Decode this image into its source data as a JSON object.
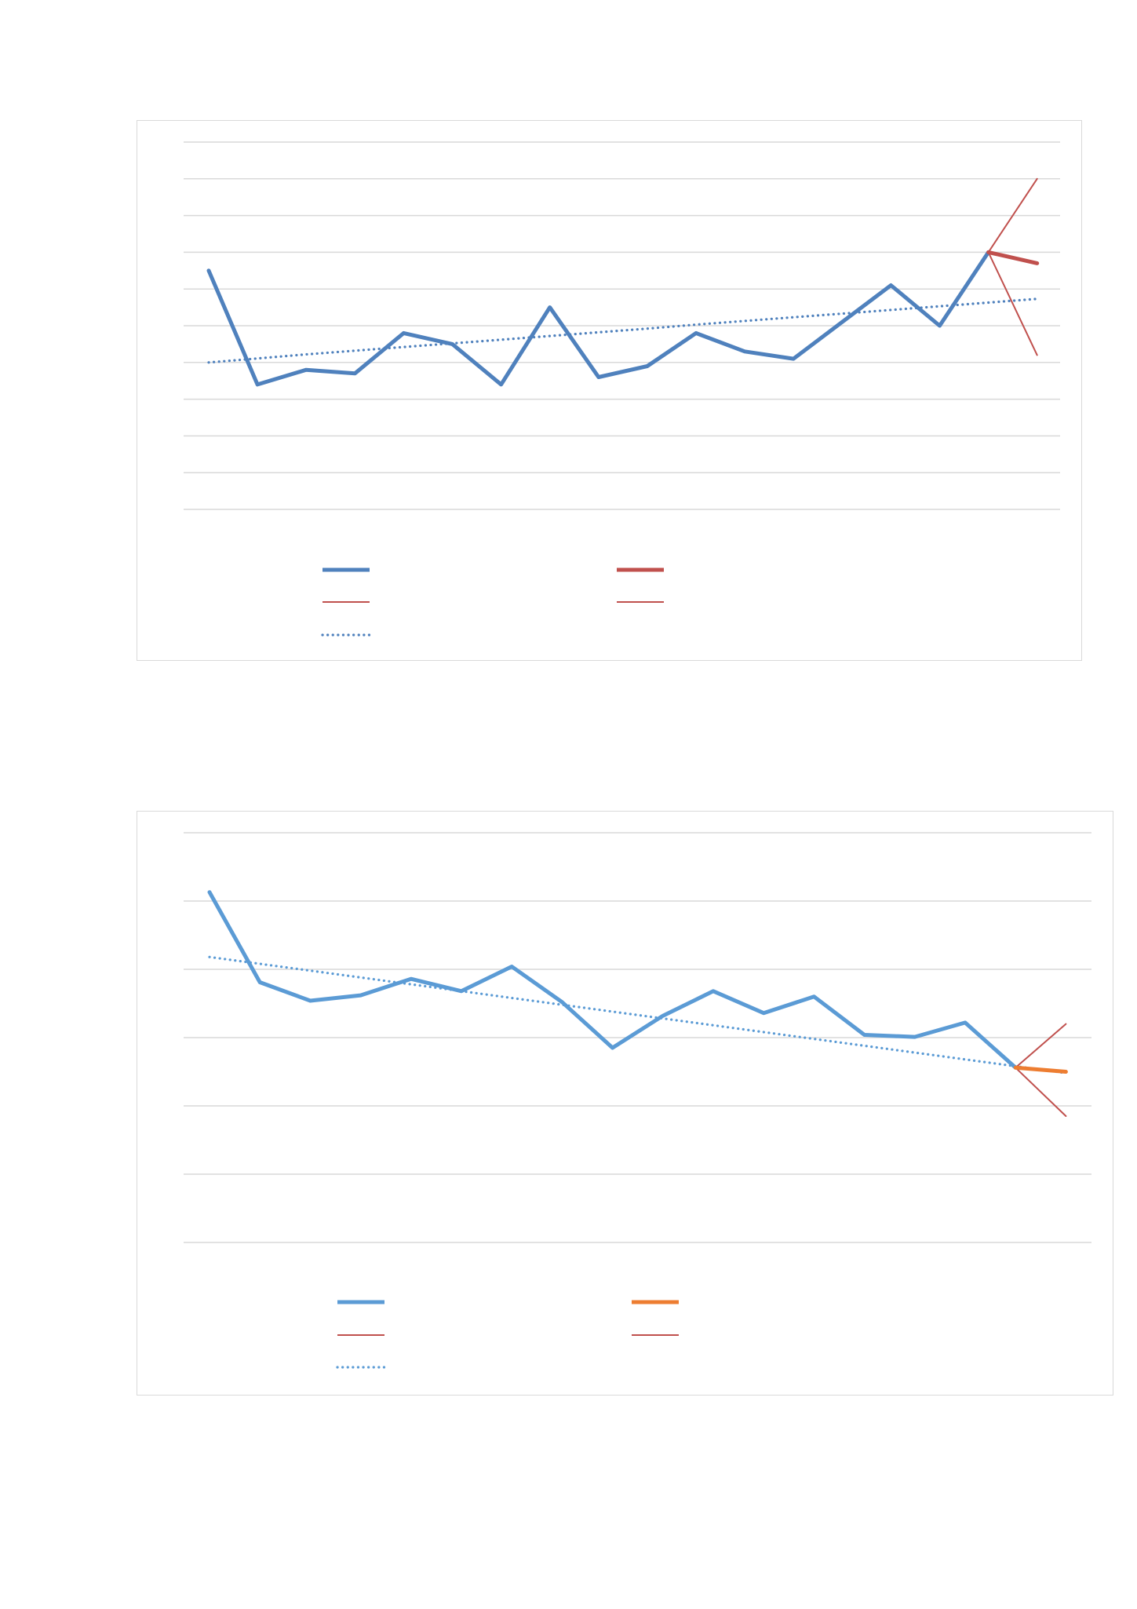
{
  "chart_data": [
    {
      "type": "line",
      "title": "",
      "xlabel": "",
      "ylabel": "",
      "ylim": [
        0,
        10
      ],
      "grid": true,
      "legend": "bottom",
      "x": [
        1,
        2,
        3,
        4,
        5,
        6,
        7,
        8,
        9,
        10,
        11,
        12,
        13,
        14,
        15,
        16,
        17,
        18
      ],
      "series": [
        {
          "role": "actual",
          "values": [
            6.5,
            3.4,
            3.8,
            3.7,
            4.8,
            4.5,
            3.4,
            5.5,
            3.6,
            3.9,
            4.8,
            4.3,
            4.1,
            5.1,
            6.1,
            5.0,
            7.0,
            null
          ],
          "color": "#4f81bd"
        },
        {
          "role": "forecast",
          "values": [
            null,
            null,
            null,
            null,
            null,
            null,
            null,
            null,
            null,
            null,
            null,
            null,
            null,
            null,
            null,
            null,
            7.0,
            6.7
          ],
          "color": "#c0504d"
        },
        {
          "role": "upper-bound",
          "values": [
            null,
            null,
            null,
            null,
            null,
            null,
            null,
            null,
            null,
            null,
            null,
            null,
            null,
            null,
            null,
            null,
            7.0,
            9.0
          ],
          "color": "#c0504d"
        },
        {
          "role": "lower-bound",
          "values": [
            null,
            null,
            null,
            null,
            null,
            null,
            null,
            null,
            null,
            null,
            null,
            null,
            null,
            null,
            null,
            null,
            7.0,
            4.2
          ],
          "color": "#c0504d"
        },
        {
          "role": "trend",
          "values": [
            4.0,
            4.11,
            4.22,
            4.32,
            4.42,
            4.52,
            4.62,
            4.72,
            4.82,
            4.92,
            5.03,
            5.13,
            5.23,
            5.33,
            5.43,
            5.53,
            5.63,
            5.73
          ],
          "color": "#4f81bd",
          "dotted": true
        }
      ]
    },
    {
      "type": "line",
      "title": "",
      "xlabel": "",
      "ylabel": "",
      "ylim": [
        0,
        6
      ],
      "grid": true,
      "legend": "bottom",
      "x": [
        1,
        2,
        3,
        4,
        5,
        6,
        7,
        8,
        9,
        10,
        11,
        12,
        13,
        14,
        15,
        16,
        17,
        18,
        19
      ],
      "series": [
        {
          "role": "actual",
          "values": [
            5.13,
            3.81,
            3.54,
            3.62,
            3.86,
            3.68,
            4.04,
            3.52,
            2.85,
            3.32,
            3.68,
            3.36,
            3.6,
            3.04,
            3.01,
            3.22,
            2.56,
            null,
            null
          ],
          "color": "#5b9bd5"
        },
        {
          "role": "forecast",
          "values": [
            null,
            null,
            null,
            null,
            null,
            null,
            null,
            null,
            null,
            null,
            null,
            null,
            null,
            null,
            null,
            null,
            2.56,
            2.5,
            null
          ],
          "color": "#ed7d31"
        },
        {
          "role": "upper-bound",
          "values": [
            null,
            null,
            null,
            null,
            null,
            null,
            null,
            null,
            null,
            null,
            null,
            null,
            null,
            null,
            null,
            null,
            2.56,
            3.2,
            null
          ],
          "color": "#c0504d"
        },
        {
          "role": "lower-bound",
          "values": [
            null,
            null,
            null,
            null,
            null,
            null,
            null,
            null,
            null,
            null,
            null,
            null,
            null,
            null,
            null,
            null,
            2.56,
            1.85,
            null
          ],
          "color": "#c0504d"
        },
        {
          "role": "trend",
          "values": [
            4.18,
            4.08,
            3.98,
            3.88,
            3.78,
            3.68,
            3.58,
            3.48,
            3.38,
            3.28,
            3.18,
            3.08,
            2.98,
            2.88,
            2.78,
            2.68,
            2.58,
            2.48,
            null
          ],
          "color": "#5b9bd5",
          "dotted": true
        }
      ]
    }
  ]
}
